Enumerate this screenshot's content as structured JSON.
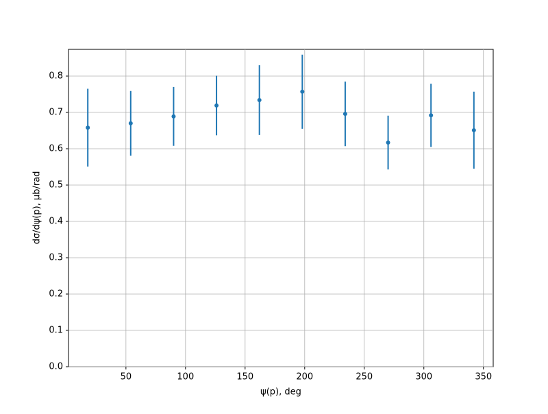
{
  "chart_data": {
    "type": "errorbar",
    "xlabel": "ψ(p), deg",
    "ylabel": "dσ/dψ(p), μb/rad",
    "color": "#1f77b4",
    "x": [
      18,
      54,
      90,
      126,
      162,
      198,
      234,
      270,
      306,
      342
    ],
    "values": [
      0.658,
      0.67,
      0.689,
      0.719,
      0.734,
      0.757,
      0.696,
      0.617,
      0.692,
      0.651
    ],
    "errors": [
      0.107,
      0.089,
      0.081,
      0.082,
      0.096,
      0.102,
      0.089,
      0.074,
      0.087,
      0.106
    ],
    "xlim": [
      1.8,
      358.2
    ],
    "ylim": [
      0,
      0.8736
    ],
    "xticks": [
      50,
      100,
      150,
      200,
      250,
      300,
      350
    ],
    "yticks": [
      {
        "value": 0,
        "label": "0.0"
      },
      0.1,
      0.2,
      0.3,
      0.4,
      0.5,
      0.6,
      0.7,
      0.8
    ],
    "grid": true
  }
}
